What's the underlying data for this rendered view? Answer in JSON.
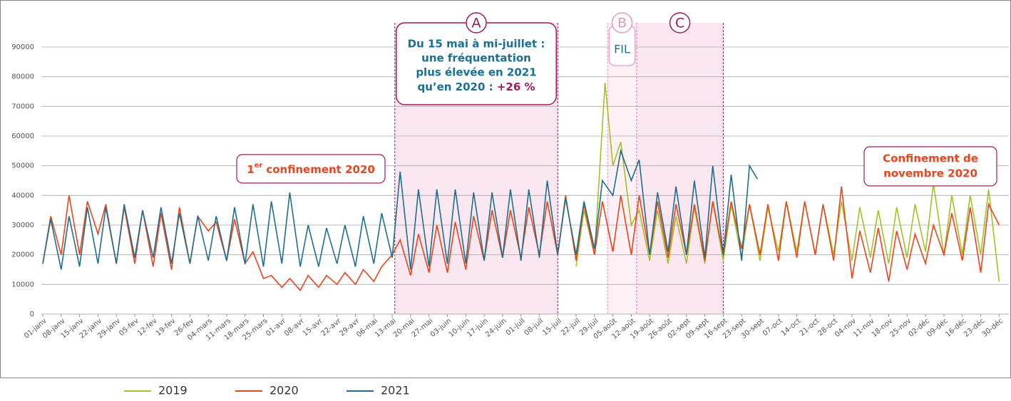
{
  "chart_data": {
    "type": "line",
    "xlim": [
      0,
      365
    ],
    "ylim": [
      0,
      90000
    ],
    "yticks": [
      0,
      10000,
      20000,
      30000,
      40000,
      50000,
      60000,
      70000,
      80000,
      90000
    ],
    "xticks": [
      {
        "value": 0,
        "label": "01-janv"
      },
      {
        "value": 7,
        "label": "08-janv"
      },
      {
        "value": 14,
        "label": "15-janv"
      },
      {
        "value": 21,
        "label": "22-janv"
      },
      {
        "value": 28,
        "label": "29-janv"
      },
      {
        "value": 35,
        "label": "05-fev"
      },
      {
        "value": 42,
        "label": "12-fev"
      },
      {
        "value": 49,
        "label": "19-fev"
      },
      {
        "value": 56,
        "label": "26-fev"
      },
      {
        "value": 63,
        "label": "04-mars"
      },
      {
        "value": 70,
        "label": "11-mars"
      },
      {
        "value": 77,
        "label": "18-mars"
      },
      {
        "value": 84,
        "label": "25-mars"
      },
      {
        "value": 91,
        "label": "01-avr"
      },
      {
        "value": 98,
        "label": "08-avr"
      },
      {
        "value": 105,
        "label": "15-avr"
      },
      {
        "value": 112,
        "label": "22-avr"
      },
      {
        "value": 119,
        "label": "29-avr"
      },
      {
        "value": 126,
        "label": "06-mai"
      },
      {
        "value": 133,
        "label": "13-mai"
      },
      {
        "value": 140,
        "label": "20-mai"
      },
      {
        "value": 147,
        "label": "27-mai"
      },
      {
        "value": 154,
        "label": "03-juin"
      },
      {
        "value": 161,
        "label": "10-juin"
      },
      {
        "value": 168,
        "label": "17-juin"
      },
      {
        "value": 175,
        "label": "24-juin"
      },
      {
        "value": 182,
        "label": "01-juil"
      },
      {
        "value": 189,
        "label": "08-juil"
      },
      {
        "value": 196,
        "label": "15-juil"
      },
      {
        "value": 203,
        "label": "22-juil"
      },
      {
        "value": 210,
        "label": "29-juil"
      },
      {
        "value": 217,
        "label": "05-août"
      },
      {
        "value": 224,
        "label": "12-août"
      },
      {
        "value": 231,
        "label": "19-août"
      },
      {
        "value": 238,
        "label": "26-août"
      },
      {
        "value": 245,
        "label": "02-sept"
      },
      {
        "value": 252,
        "label": "09-sept"
      },
      {
        "value": 259,
        "label": "16-sept"
      },
      {
        "value": 266,
        "label": "23-sept"
      },
      {
        "value": 273,
        "label": "30-sept"
      },
      {
        "value": 280,
        "label": "07-oct"
      },
      {
        "value": 287,
        "label": "14-oct"
      },
      {
        "value": 294,
        "label": "21-oct"
      },
      {
        "value": 301,
        "label": "28-oct"
      },
      {
        "value": 308,
        "label": "04-nov"
      },
      {
        "value": 315,
        "label": "11-nov"
      },
      {
        "value": 322,
        "label": "18-nov"
      },
      {
        "value": 329,
        "label": "25-nov"
      },
      {
        "value": 336,
        "label": "02-déc"
      },
      {
        "value": 343,
        "label": "09-déc"
      },
      {
        "value": 350,
        "label": "16-déc"
      },
      {
        "value": 357,
        "label": "23-déc"
      },
      {
        "value": 364,
        "label": "30-déc"
      }
    ],
    "grid": true,
    "series": [
      {
        "name": "2019",
        "color": "#a5c127",
        "x": [
          203,
          206,
          210,
          214,
          217,
          220,
          224,
          227,
          231,
          234,
          238,
          241,
          245,
          248,
          252,
          255,
          259,
          262,
          266,
          269,
          273,
          276,
          280,
          283,
          287,
          290,
          294,
          297,
          301,
          304,
          308,
          311,
          315,
          318,
          322,
          325,
          329,
          332,
          336,
          339,
          343,
          346,
          350,
          353,
          357,
          360,
          364
        ],
        "values": [
          16000,
          35000,
          20000,
          78000,
          50000,
          58000,
          30000,
          35000,
          18000,
          35000,
          17000,
          33000,
          17000,
          36000,
          17000,
          38000,
          18000,
          37000,
          19000,
          37000,
          18000,
          36000,
          21000,
          38000,
          21000,
          38000,
          20000,
          37000,
          20000,
          38000,
          18000,
          36000,
          19000,
          35000,
          17000,
          36000,
          19000,
          37000,
          21000,
          44000,
          20000,
          40000,
          20000,
          40000,
          20000,
          42000,
          11000
        ]
      },
      {
        "name": "2020",
        "color": "#e8461e",
        "x": [
          0,
          3,
          7,
          10,
          14,
          17,
          21,
          24,
          28,
          31,
          35,
          38,
          42,
          45,
          49,
          52,
          56,
          59,
          63,
          66,
          70,
          73,
          77,
          80,
          84,
          87,
          91,
          94,
          98,
          101,
          105,
          108,
          112,
          115,
          119,
          122,
          126,
          129,
          133,
          136,
          140,
          143,
          147,
          150,
          154,
          157,
          161,
          164,
          168,
          171,
          175,
          178,
          182,
          185,
          189,
          192,
          196,
          199,
          203,
          206,
          210,
          213,
          217,
          220,
          224,
          227,
          231,
          234,
          238,
          241,
          245,
          248,
          252,
          255,
          259,
          262,
          266,
          269,
          273,
          276,
          280,
          283,
          287,
          290,
          294,
          297,
          301,
          304,
          308,
          311,
          315,
          318,
          322,
          325,
          329,
          332,
          336,
          339,
          343,
          346,
          350,
          353,
          357,
          360,
          364
        ],
        "values": [
          17000,
          33000,
          20000,
          40000,
          20000,
          38000,
          27000,
          37000,
          17000,
          36000,
          17000,
          35000,
          16000,
          34000,
          15000,
          36000,
          17000,
          33000,
          28000,
          31000,
          18000,
          32000,
          17000,
          21000,
          12000,
          13000,
          9000,
          12000,
          8000,
          13000,
          9000,
          13000,
          10000,
          14000,
          10000,
          15000,
          11000,
          16000,
          20000,
          25000,
          13000,
          27000,
          14000,
          30000,
          14000,
          31000,
          15000,
          33000,
          18000,
          35000,
          19000,
          35000,
          19000,
          36000,
          20000,
          38000,
          20000,
          40000,
          18000,
          37000,
          20000,
          38000,
          21000,
          40000,
          20000,
          40000,
          20000,
          38000,
          19000,
          37000,
          20000,
          37000,
          18000,
          38000,
          20000,
          38000,
          22000,
          37000,
          20000,
          37000,
          18000,
          38000,
          19000,
          38000,
          20000,
          37000,
          18000,
          43000,
          12000,
          28000,
          14000,
          29000,
          11000,
          28000,
          15000,
          27000,
          17000,
          30000,
          20000,
          34000,
          18000,
          36000,
          14000,
          37000,
          30000
        ]
      },
      {
        "name": "2021",
        "color": "#1f6e8c",
        "x": [
          0,
          3,
          7,
          10,
          14,
          17,
          21,
          24,
          28,
          31,
          35,
          38,
          42,
          45,
          49,
          52,
          56,
          59,
          63,
          66,
          70,
          73,
          77,
          80,
          84,
          87,
          91,
          94,
          98,
          101,
          105,
          108,
          112,
          115,
          119,
          122,
          126,
          129,
          133,
          136,
          140,
          143,
          147,
          150,
          154,
          157,
          161,
          164,
          168,
          171,
          175,
          178,
          182,
          185,
          189,
          192,
          196,
          199,
          203,
          206,
          210,
          213,
          217,
          220,
          224,
          227,
          231,
          234,
          238,
          241,
          245,
          248,
          252,
          255,
          259,
          262,
          266,
          269,
          272
        ],
        "values": [
          17000,
          32000,
          15000,
          33000,
          16000,
          36000,
          17000,
          36000,
          17000,
          37000,
          19000,
          35000,
          19000,
          36000,
          17000,
          34000,
          17000,
          33000,
          18000,
          33000,
          18000,
          36000,
          17000,
          37000,
          16000,
          38000,
          17000,
          41000,
          16000,
          30000,
          16000,
          29000,
          17000,
          30000,
          16000,
          33000,
          17000,
          34000,
          19000,
          48000,
          15000,
          42000,
          16000,
          42000,
          17000,
          42000,
          17000,
          41000,
          18000,
          41000,
          19000,
          42000,
          18000,
          42000,
          19000,
          45000,
          20000,
          39000,
          20000,
          38000,
          22000,
          45000,
          40000,
          55000,
          45000,
          52000,
          20000,
          41000,
          21000,
          43000,
          20000,
          45000,
          19000,
          50000,
          20000,
          47000,
          18000,
          50000,
          45500
        ]
      }
    ],
    "annotations": {
      "a": {
        "letter": "A",
        "x_range": [
          134,
          196
        ],
        "lines": [
          "Du 15 mai à mi-juillet :",
          "une fréquentation",
          "plus élevée en 2021"
        ],
        "last": "qu’en 2020 :",
        "bold": "+26 %"
      },
      "b": {
        "letter": "B",
        "x_range": [
          215,
          226
        ],
        "text": "FIL"
      },
      "c": {
        "letter": "C",
        "x_range": [
          226,
          259
        ]
      },
      "confinement1": {
        "num": "1",
        "sup": "er",
        "text": "confinement 2020"
      },
      "confinement_nov": {
        "lines": [
          "Confinement de",
          "novembre 2020"
        ]
      }
    }
  }
}
